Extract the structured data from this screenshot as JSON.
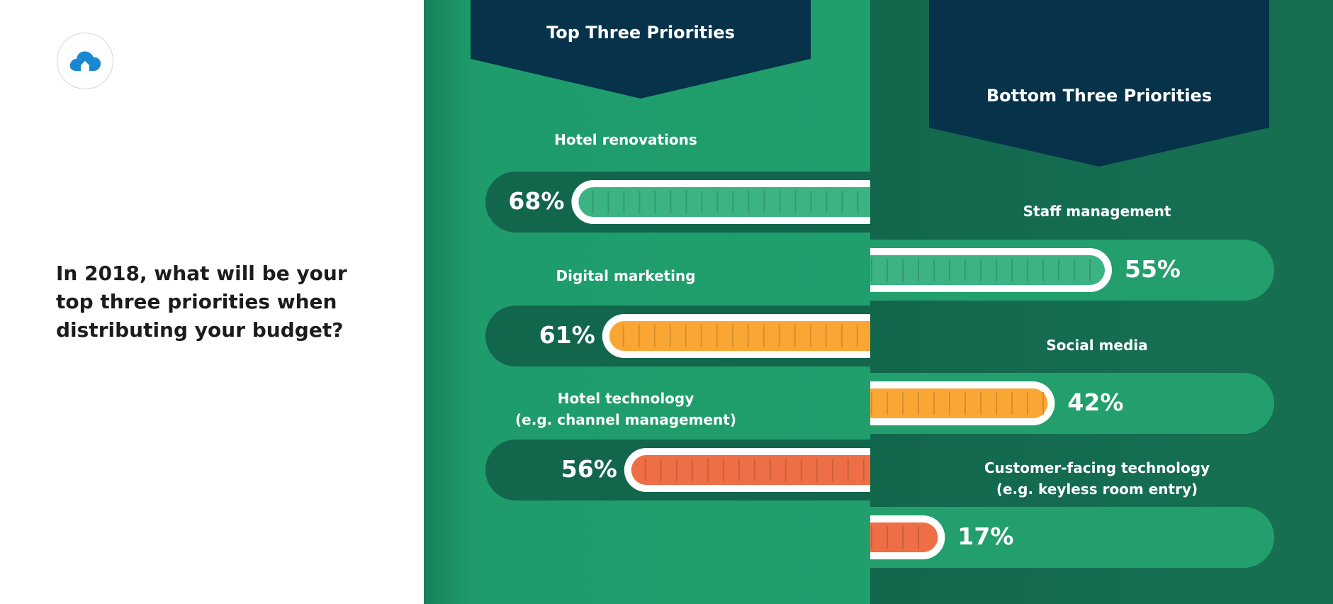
{
  "question": "In 2018, what will be your top three priorities when distributing your budget?",
  "icons": {
    "logo": "cloud-house-icon"
  },
  "colors": {
    "green_fill": "#3bb383",
    "orange_fill": "#f9a634",
    "red_fill": "#ee6e45",
    "banner": "#06324a",
    "dark_track": "#12664c",
    "light_track": "#229f6d"
  },
  "chart_data": [
    {
      "type": "bar",
      "title": "Top Three Priorities",
      "categories": [
        "Hotel renovations",
        "Digital marketing",
        "Hotel technology\n(e.g. channel management)"
      ],
      "values": [
        68,
        61,
        56
      ],
      "value_labels": [
        "68%",
        "61%",
        "56%"
      ],
      "colors": [
        "#3bb383",
        "#f9a634",
        "#ee6e45"
      ],
      "unit": "%"
    },
    {
      "type": "bar",
      "title": "Bottom Three Priorities",
      "categories": [
        "Staff management",
        "Social media",
        "Customer-facing technology\n(e.g. keyless room entry)"
      ],
      "values": [
        55,
        42,
        17
      ],
      "value_labels": [
        "55%",
        "42%",
        "17%"
      ],
      "colors": [
        "#3bb383",
        "#f9a634",
        "#ee6e45"
      ],
      "unit": "%"
    }
  ]
}
